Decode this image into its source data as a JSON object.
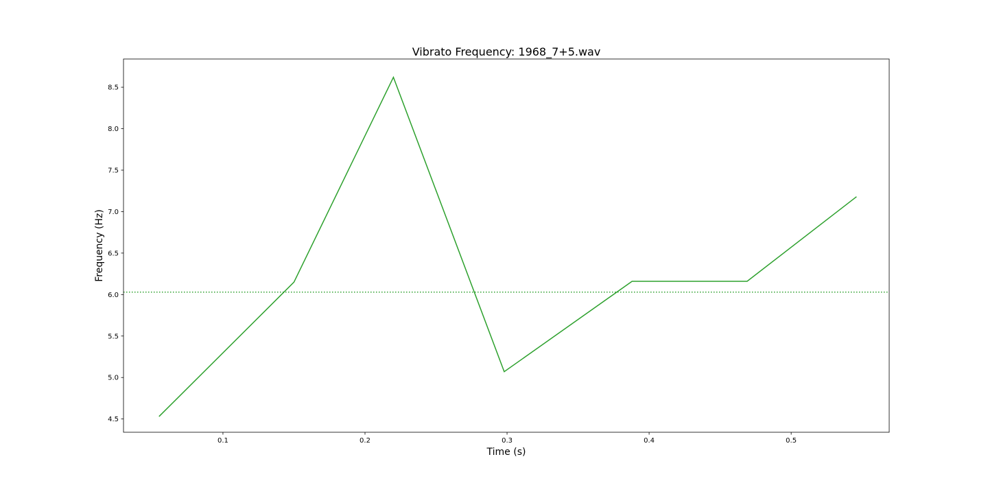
{
  "chart_data": {
    "type": "line",
    "title": "Vibrato Frequency: 1968_7+5.wav",
    "xlabel": "Time (s)",
    "ylabel": "Frequency (Hz)",
    "xlim": [
      0.03,
      0.569
    ],
    "ylim": [
      4.34,
      8.84
    ],
    "xticks": [
      0.1,
      0.2,
      0.3,
      0.4,
      0.5
    ],
    "xtick_labels": [
      "0.1",
      "0.2",
      "0.3",
      "0.4",
      "0.5"
    ],
    "yticks": [
      4.5,
      5.0,
      5.5,
      6.0,
      6.5,
      7.0,
      7.5,
      8.0,
      8.5
    ],
    "ytick_labels": [
      "4.5",
      "5.0",
      "5.5",
      "6.0",
      "6.5",
      "7.0",
      "7.5",
      "8.0",
      "8.5"
    ],
    "grid": false,
    "series": [
      {
        "x": [
          0.055,
          0.15,
          0.22,
          0.298,
          0.388,
          0.469,
          0.546
        ],
        "y": [
          4.53,
          6.15,
          8.62,
          5.07,
          6.16,
          6.16,
          7.18
        ],
        "color": "#2ca02c",
        "style": "solid"
      }
    ],
    "reference_lines": [
      {
        "orientation": "horizontal",
        "y": 6.03,
        "color": "#2ca02c",
        "style": "dotted"
      }
    ]
  }
}
